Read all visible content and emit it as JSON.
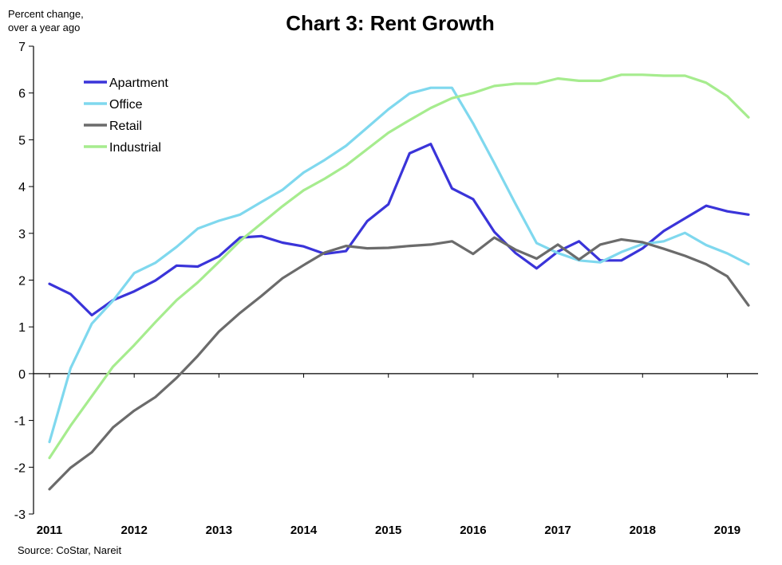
{
  "chart_data": {
    "type": "line",
    "title": "Chart 3: Rent Growth",
    "ylabel_lines": [
      "Percent change,",
      "over a year ago"
    ],
    "xlabel": "",
    "source": "Source: CoStar, Nareit",
    "ylim": [
      -3,
      7
    ],
    "yticks": [
      -3,
      -2,
      -1,
      0,
      1,
      2,
      3,
      4,
      5,
      6,
      7
    ],
    "xlim": [
      2011,
      2019.5
    ],
    "xticks": [
      2011,
      2012,
      2013,
      2014,
      2015,
      2016,
      2017,
      2018,
      2019
    ],
    "xtick_labels": [
      "2011",
      "2012",
      "2013",
      "2014",
      "2015",
      "2016",
      "2017",
      "2018",
      "2019"
    ],
    "grid": false,
    "legend_position": "top-left",
    "x": [
      2011.0,
      2011.25,
      2011.5,
      2011.75,
      2012.0,
      2012.25,
      2012.5,
      2012.75,
      2013.0,
      2013.25,
      2013.5,
      2013.75,
      2014.0,
      2014.25,
      2014.5,
      2014.75,
      2015.0,
      2015.25,
      2015.5,
      2015.75,
      2016.0,
      2016.25,
      2016.5,
      2016.75,
      2017.0,
      2017.25,
      2017.5,
      2017.75,
      2018.0,
      2018.25,
      2018.5,
      2018.75,
      2019.0,
      2019.25
    ],
    "series": [
      {
        "name": "Apartment",
        "color": "#3a34d9",
        "values": [
          1.92,
          1.7,
          1.25,
          1.57,
          1.76,
          1.99,
          2.31,
          2.29,
          2.51,
          2.91,
          2.94,
          2.8,
          2.72,
          2.56,
          2.62,
          3.26,
          3.62,
          4.71,
          4.91,
          3.96,
          3.73,
          3.03,
          2.58,
          2.25,
          2.61,
          2.83,
          2.42,
          2.42,
          2.68,
          3.05,
          3.32,
          3.59,
          3.47,
          3.4
        ]
      },
      {
        "name": "Office",
        "color": "#7fd8ee",
        "values": [
          -1.46,
          0.12,
          1.07,
          1.56,
          2.15,
          2.37,
          2.71,
          3.1,
          3.27,
          3.4,
          3.67,
          3.93,
          4.3,
          4.57,
          4.87,
          5.26,
          5.65,
          5.99,
          6.11,
          6.11,
          5.35,
          4.5,
          3.63,
          2.79,
          2.58,
          2.42,
          2.38,
          2.6,
          2.77,
          2.83,
          3.01,
          2.75,
          2.57,
          2.34
        ]
      },
      {
        "name": "Retail",
        "color": "#6b6b6b",
        "values": [
          -2.47,
          -2.01,
          -1.68,
          -1.15,
          -0.79,
          -0.5,
          -0.09,
          0.38,
          0.9,
          1.3,
          1.66,
          2.04,
          2.32,
          2.59,
          2.73,
          2.68,
          2.69,
          2.73,
          2.76,
          2.83,
          2.56,
          2.91,
          2.65,
          2.46,
          2.76,
          2.44,
          2.76,
          2.87,
          2.81,
          2.67,
          2.52,
          2.34,
          2.08,
          1.46
        ]
      },
      {
        "name": "Industrial",
        "color": "#a6ec8e",
        "values": [
          -1.8,
          -1.11,
          -0.48,
          0.15,
          0.61,
          1.1,
          1.57,
          1.95,
          2.39,
          2.84,
          3.21,
          3.58,
          3.92,
          4.17,
          4.45,
          4.8,
          5.15,
          5.42,
          5.68,
          5.89,
          6.0,
          6.15,
          6.2,
          6.2,
          6.31,
          6.26,
          6.26,
          6.39,
          6.39,
          6.37,
          6.37,
          6.22,
          5.93,
          5.48
        ]
      }
    ]
  }
}
